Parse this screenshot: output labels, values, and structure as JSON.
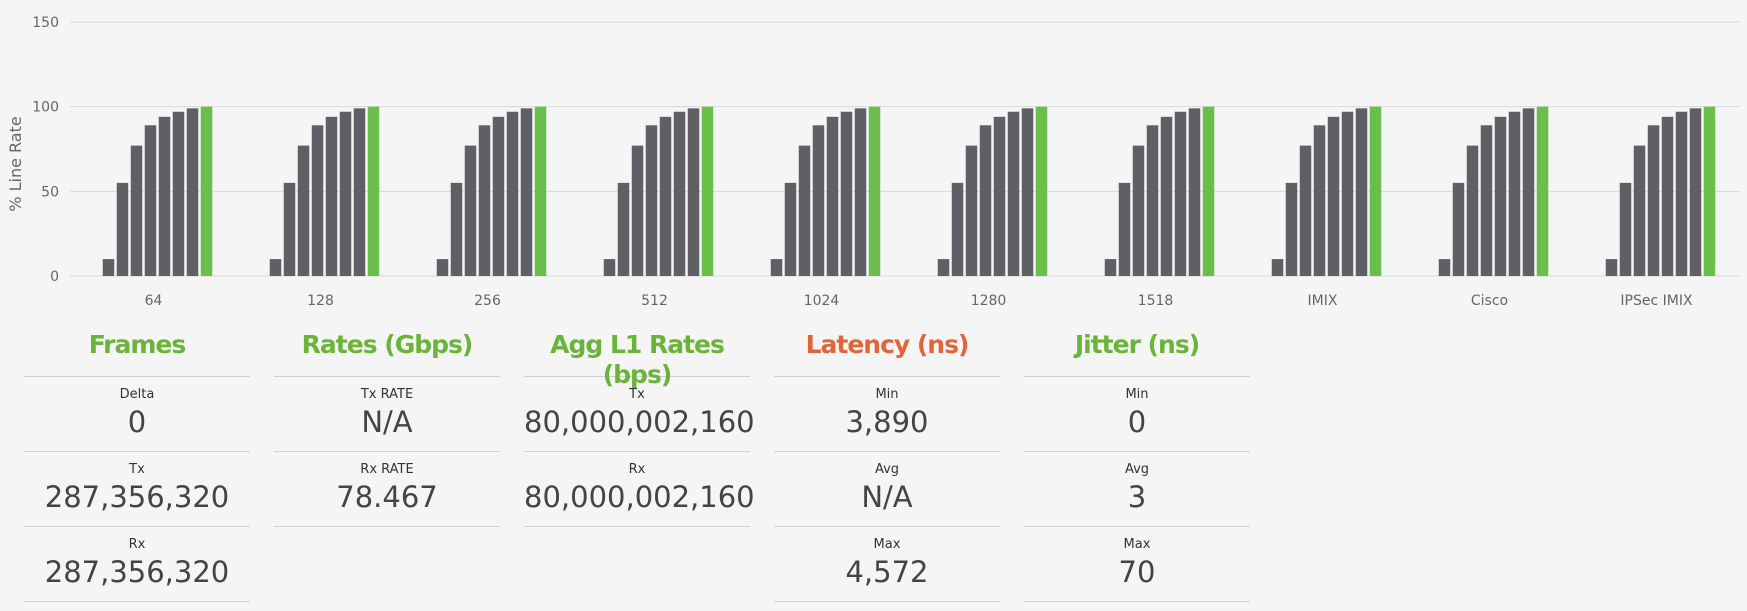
{
  "colors": {
    "bar": "#5e6066",
    "highlight": "#6abf4b",
    "title_green": "#6ab43a",
    "title_orange": "#e0663a"
  },
  "chart_data": {
    "type": "bar",
    "ylabel": "% Line Rate",
    "ylim": [
      0,
      150
    ],
    "yticks": [
      0,
      50,
      100,
      150
    ],
    "grid": true,
    "categories": [
      "64",
      "128",
      "256",
      "512",
      "1024",
      "1280",
      "1518",
      "IMIX",
      "Cisco",
      "IPSec IMIX"
    ],
    "groups": [
      {
        "category": "64",
        "values": [
          10,
          55,
          77,
          89,
          94,
          97,
          99,
          100
        ],
        "highlight_index": 7
      },
      {
        "category": "128",
        "values": [
          10,
          55,
          77,
          89,
          94,
          97,
          99,
          100
        ],
        "highlight_index": 7
      },
      {
        "category": "256",
        "values": [
          10,
          55,
          77,
          89,
          94,
          97,
          99,
          100
        ],
        "highlight_index": 7
      },
      {
        "category": "512",
        "values": [
          10,
          55,
          77,
          89,
          94,
          97,
          99,
          100
        ],
        "highlight_index": 7
      },
      {
        "category": "1024",
        "values": [
          10,
          55,
          77,
          89,
          94,
          97,
          99,
          100
        ],
        "highlight_index": 7
      },
      {
        "category": "1280",
        "values": [
          10,
          55,
          77,
          89,
          94,
          97,
          99,
          100
        ],
        "highlight_index": 7
      },
      {
        "category": "1518",
        "values": [
          10,
          55,
          77,
          89,
          94,
          97,
          99,
          100
        ],
        "highlight_index": 7
      },
      {
        "category": "IMIX",
        "values": [
          10,
          55,
          77,
          89,
          94,
          97,
          99,
          100
        ],
        "highlight_index": 7
      },
      {
        "category": "Cisco",
        "values": [
          10,
          55,
          77,
          89,
          94,
          97,
          99,
          100
        ],
        "highlight_index": 7
      },
      {
        "category": "IPSec IMIX",
        "values": [
          10,
          55,
          77,
          89,
          94,
          97,
          99,
          100
        ],
        "highlight_index": 7
      }
    ]
  },
  "panels": {
    "frames": {
      "title": "Frames",
      "delta_label": "Delta",
      "delta_value": "0",
      "tx_label": "Tx",
      "tx_value": "287,356,320",
      "rx_label": "Rx",
      "rx_value": "287,356,320"
    },
    "rates": {
      "title": "Rates (Gbps)",
      "tx_label": "Tx RATE",
      "tx_value": "N/A",
      "rx_label": "Rx RATE",
      "rx_value": "78.467"
    },
    "agg": {
      "title": "Agg L1 Rates (bps)",
      "tx_label": "Tx",
      "tx_value": "80,000,002,160",
      "rx_label": "Rx",
      "rx_value": "80,000,002,160"
    },
    "latency": {
      "title": "Latency (ns)",
      "min_label": "Min",
      "min_value": "3,890",
      "avg_label": "Avg",
      "avg_value": "N/A",
      "max_label": "Max",
      "max_value": "4,572"
    },
    "jitter": {
      "title": "Jitter (ns)",
      "min_label": "Min",
      "min_value": "0",
      "avg_label": "Avg",
      "avg_value": "3",
      "max_label": "Max",
      "max_value": "70"
    }
  }
}
